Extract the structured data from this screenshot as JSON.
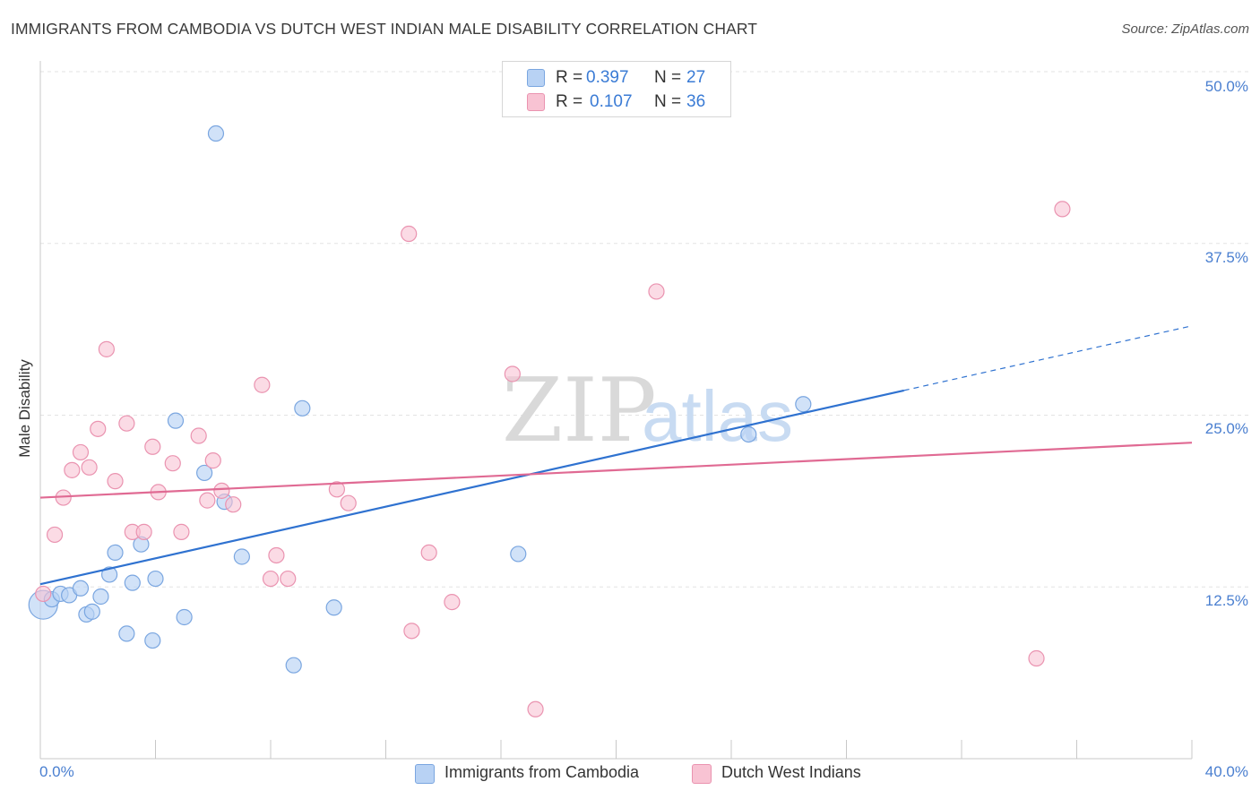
{
  "title": "IMMIGRANTS FROM CAMBODIA VS DUTCH WEST INDIAN MALE DISABILITY CORRELATION CHART",
  "source": "Source: ZipAtlas.com",
  "watermark": {
    "zip": "ZIP",
    "atlas": "atlas"
  },
  "legend": {
    "r_label": "R =",
    "n_label": "N =",
    "series": [
      {
        "name": "Immigrants from Cambodia",
        "r": "0.397",
        "n": "27"
      },
      {
        "name": "Dutch West Indians",
        "r": "0.107",
        "n": "36"
      }
    ]
  },
  "chart_data": {
    "type": "scatter",
    "title": "IMMIGRANTS FROM CAMBODIA VS DUTCH WEST INDIAN MALE DISABILITY CORRELATION CHART",
    "xlabel": "",
    "ylabel": "Male Disability",
    "xlim": [
      0,
      40
    ],
    "ylim": [
      0,
      50
    ],
    "x_tick_labels": [
      "0.0%",
      "40.0%"
    ],
    "y_ticks": [
      12.5,
      25.0,
      37.5,
      50.0
    ],
    "y_tick_labels": [
      "12.5%",
      "25.0%",
      "37.5%",
      "50.0%"
    ],
    "grid": true,
    "legend_position": "top-center",
    "colors": {
      "cambodia_fill": "#b8d2f4",
      "cambodia_stroke": "#7aa6e0",
      "cambodia_line": "#2f72d0",
      "dutch_fill": "#f8c3d3",
      "dutch_stroke": "#ea93b0",
      "dutch_line": "#e06a93",
      "grid": "#e3e3e3",
      "axis_text": "#4a7fd0"
    },
    "series": [
      {
        "name": "Immigrants from Cambodia",
        "points": [
          {
            "x": 0.1,
            "y": 11.2,
            "big": true
          },
          {
            "x": 0.4,
            "y": 11.6
          },
          {
            "x": 0.7,
            "y": 12.0
          },
          {
            "x": 1.0,
            "y": 11.9
          },
          {
            "x": 1.4,
            "y": 12.4
          },
          {
            "x": 1.6,
            "y": 10.5
          },
          {
            "x": 1.8,
            "y": 10.7
          },
          {
            "x": 2.1,
            "y": 11.8
          },
          {
            "x": 2.4,
            "y": 13.4
          },
          {
            "x": 2.6,
            "y": 15.0
          },
          {
            "x": 3.0,
            "y": 9.1
          },
          {
            "x": 3.2,
            "y": 12.8
          },
          {
            "x": 3.5,
            "y": 15.6
          },
          {
            "x": 3.9,
            "y": 8.6
          },
          {
            "x": 4.0,
            "y": 13.1
          },
          {
            "x": 4.7,
            "y": 24.6
          },
          {
            "x": 5.0,
            "y": 10.3
          },
          {
            "x": 5.7,
            "y": 20.8
          },
          {
            "x": 6.1,
            "y": 45.5
          },
          {
            "x": 6.4,
            "y": 18.7
          },
          {
            "x": 7.0,
            "y": 14.7
          },
          {
            "x": 8.8,
            "y": 6.8
          },
          {
            "x": 9.1,
            "y": 25.5
          },
          {
            "x": 10.2,
            "y": 11.0
          },
          {
            "x": 16.6,
            "y": 14.9
          },
          {
            "x": 24.6,
            "y": 23.6
          },
          {
            "x": 26.5,
            "y": 25.8
          }
        ],
        "trend": {
          "x0": 0,
          "y0": 12.7,
          "x1": 30,
          "y1": 26.8,
          "dashed_to_x": 40,
          "dashed_to_y": 31.5
        }
      },
      {
        "name": "Dutch West Indians",
        "points": [
          {
            "x": 0.1,
            "y": 12.0
          },
          {
            "x": 0.5,
            "y": 16.3
          },
          {
            "x": 0.8,
            "y": 19.0
          },
          {
            "x": 1.1,
            "y": 21.0
          },
          {
            "x": 1.4,
            "y": 22.3
          },
          {
            "x": 1.7,
            "y": 21.2
          },
          {
            "x": 2.0,
            "y": 24.0
          },
          {
            "x": 2.3,
            "y": 29.8
          },
          {
            "x": 2.6,
            "y": 20.2
          },
          {
            "x": 3.0,
            "y": 24.4
          },
          {
            "x": 3.2,
            "y": 16.5
          },
          {
            "x": 3.6,
            "y": 16.5
          },
          {
            "x": 3.9,
            "y": 22.7
          },
          {
            "x": 4.1,
            "y": 19.4
          },
          {
            "x": 4.6,
            "y": 21.5
          },
          {
            "x": 4.9,
            "y": 16.5
          },
          {
            "x": 5.5,
            "y": 23.5
          },
          {
            "x": 5.8,
            "y": 18.8
          },
          {
            "x": 6.0,
            "y": 21.7
          },
          {
            "x": 6.3,
            "y": 19.5
          },
          {
            "x": 6.7,
            "y": 18.5
          },
          {
            "x": 7.7,
            "y": 27.2
          },
          {
            "x": 8.0,
            "y": 13.1
          },
          {
            "x": 8.2,
            "y": 14.8
          },
          {
            "x": 8.6,
            "y": 13.1
          },
          {
            "x": 10.3,
            "y": 19.6
          },
          {
            "x": 10.7,
            "y": 18.6
          },
          {
            "x": 12.8,
            "y": 38.2
          },
          {
            "x": 12.9,
            "y": 9.3
          },
          {
            "x": 13.5,
            "y": 15.0
          },
          {
            "x": 14.3,
            "y": 11.4
          },
          {
            "x": 16.4,
            "y": 28.0
          },
          {
            "x": 17.2,
            "y": 3.6
          },
          {
            "x": 21.4,
            "y": 34.0
          },
          {
            "x": 34.6,
            "y": 7.3
          },
          {
            "x": 35.5,
            "y": 40.0
          }
        ],
        "trend": {
          "x0": 0,
          "y0": 19.0,
          "x1": 40,
          "y1": 23.0
        }
      }
    ]
  }
}
